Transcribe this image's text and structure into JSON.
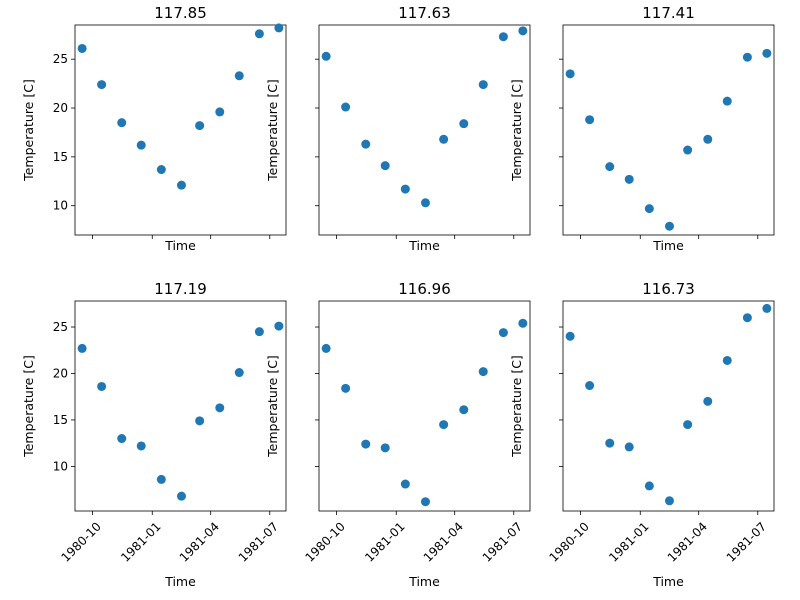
{
  "chart_data": {
    "type": "scatter",
    "xlabel": "Time",
    "ylabel": "Temperature [C]",
    "marker_color": "#1f77b4",
    "x": [
      "1980-09-15",
      "1980-10-15",
      "1980-11-15",
      "1980-12-15",
      "1981-01-15",
      "1981-02-15",
      "1981-03-15",
      "1981-04-15",
      "1981-05-15",
      "1981-06-15",
      "1981-07-15"
    ],
    "xlim": [
      "1980-09-04",
      "1981-07-26"
    ],
    "ylim": [
      7.0,
      28.5
    ],
    "xticks": [
      {
        "value": "1980-10-01",
        "label": "1980-10"
      },
      {
        "value": "1981-01-01",
        "label": "1981-01"
      },
      {
        "value": "1981-04-01",
        "label": "1981-04"
      },
      {
        "value": "1981-07-01",
        "label": "1981-07"
      }
    ],
    "yticks": [
      10,
      15,
      20,
      25
    ],
    "panels": [
      {
        "title": "117.85",
        "values": [
          26.1,
          22.4,
          18.5,
          16.2,
          13.7,
          12.1,
          18.2,
          19.6,
          23.3,
          27.6,
          28.2
        ]
      },
      {
        "title": "117.63",
        "values": [
          25.3,
          20.1,
          16.3,
          14.1,
          11.7,
          10.3,
          16.8,
          18.4,
          22.4,
          27.3,
          27.9
        ]
      },
      {
        "title": "117.41",
        "values": [
          23.5,
          18.8,
          14.0,
          12.7,
          9.7,
          7.9,
          15.7,
          16.8,
          20.7,
          25.2,
          25.6
        ]
      },
      {
        "title": "117.19",
        "values": [
          22.7,
          18.6,
          13.0,
          12.2,
          8.6,
          6.8,
          14.9,
          16.3,
          20.1,
          24.5,
          25.1
        ]
      },
      {
        "title": "116.96",
        "values": [
          22.7,
          18.4,
          12.4,
          12.0,
          8.1,
          6.2,
          14.5,
          16.1,
          20.2,
          24.4,
          25.4
        ]
      },
      {
        "title": "116.73",
        "values": [
          24.0,
          18.7,
          12.5,
          12.1,
          7.9,
          6.3,
          14.5,
          17.0,
          21.4,
          26.0,
          27.0
        ]
      }
    ],
    "row_ylim": [
      [
        7.0,
        28.5
      ],
      [
        5.2,
        27.8
      ]
    ]
  }
}
